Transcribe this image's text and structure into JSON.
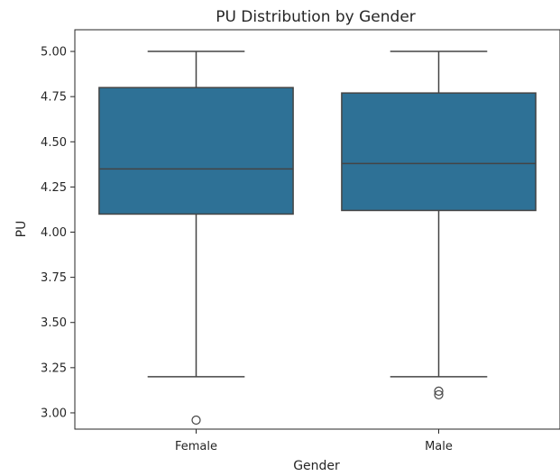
{
  "chart_data": {
    "type": "box",
    "title": "PU Distribution by Gender",
    "xlabel": "Gender",
    "ylabel": "PU",
    "categories": [
      "Female",
      "Male"
    ],
    "ylim": [
      2.91,
      5.12
    ],
    "yticks": [
      "3.00",
      "3.25",
      "3.50",
      "3.75",
      "4.00",
      "4.25",
      "4.50",
      "4.75",
      "5.00"
    ],
    "box_color": "#2e7196",
    "line_color": "#444444",
    "boxes": [
      {
        "category": "Female",
        "whisker_low": 3.2,
        "q1": 4.1,
        "median": 4.35,
        "q3": 4.8,
        "whisker_high": 5.0,
        "outliers": [
          2.96
        ]
      },
      {
        "category": "Male",
        "whisker_low": 3.2,
        "q1": 4.12,
        "median": 4.38,
        "q3": 4.77,
        "whisker_high": 5.0,
        "outliers": [
          3.12,
          3.1
        ]
      }
    ]
  }
}
